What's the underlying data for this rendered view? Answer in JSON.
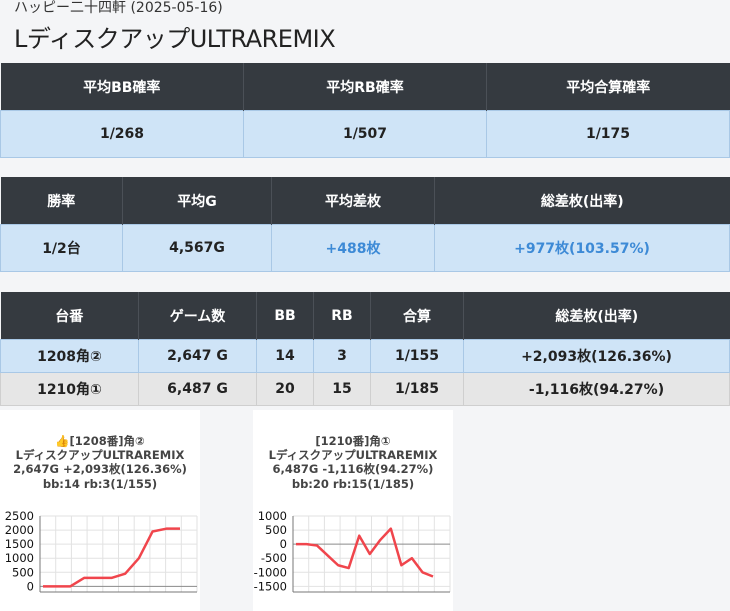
{
  "header": {
    "subtitle": "ハッピー二十四軒 (2025-05-16)",
    "title": "LディスクアップULTRAREMIX"
  },
  "table1": {
    "headers": [
      "平均BB確率",
      "平均RB確率",
      "平均合算確率"
    ],
    "values": [
      "1/268",
      "1/507",
      "1/175"
    ]
  },
  "table2": {
    "headers": [
      "勝率",
      "平均G",
      "平均差枚",
      "総差枚(出率)"
    ],
    "values": [
      "1/2台",
      "4,567G",
      "+488枚",
      "+977枚(103.57%)"
    ]
  },
  "table3": {
    "headers": [
      "台番",
      "ゲーム数",
      "BB",
      "RB",
      "合算",
      "総差枚(出率)"
    ],
    "rows": [
      [
        "1208角②",
        "2,647 G",
        "14",
        "3",
        "1/155",
        "+2,093枚(126.36%)"
      ],
      [
        "1210角①",
        "6,487 G",
        "20",
        "15",
        "1/185",
        "-1,116枚(94.27%)"
      ]
    ]
  },
  "colors": {
    "header_bg": "#353a40",
    "highlight_row": "#cfe4f7",
    "positive_text": "#3d8ad6",
    "line": "#f0454c"
  },
  "cards": [
    {
      "line1": "👍[1208番]角②",
      "line2": "LディスクアップULTRAREMIX",
      "line3": "2,647G +2,093枚(126.36%)",
      "line4": "bb:14 rb:3(1/155)",
      "chart_data": {
        "type": "line",
        "yticks": [
          "2500",
          "2000",
          "1500",
          "1000",
          "500",
          "0"
        ],
        "ylim": [
          -200,
          2500
        ],
        "values": [
          0,
          0,
          0,
          300,
          300,
          300,
          450,
          1000,
          1950,
          2050,
          2050
        ],
        "grid": true
      }
    },
    {
      "line1": "[1210番]角①",
      "line2": "LディスクアップULTRAREMIX",
      "line3": "6,487G -1,116枚(94.27%)",
      "line4": "bb:20 rb:15(1/185)",
      "chart_data": {
        "type": "line",
        "yticks": [
          "1000",
          "500",
          "0",
          "-500",
          "-1000",
          "-1500"
        ],
        "ylim": [
          -1700,
          1000
        ],
        "values": [
          0,
          0,
          -50,
          -400,
          -750,
          -850,
          300,
          -350,
          150,
          550,
          -750,
          -500,
          -1000,
          -1150
        ],
        "grid": true
      }
    }
  ]
}
